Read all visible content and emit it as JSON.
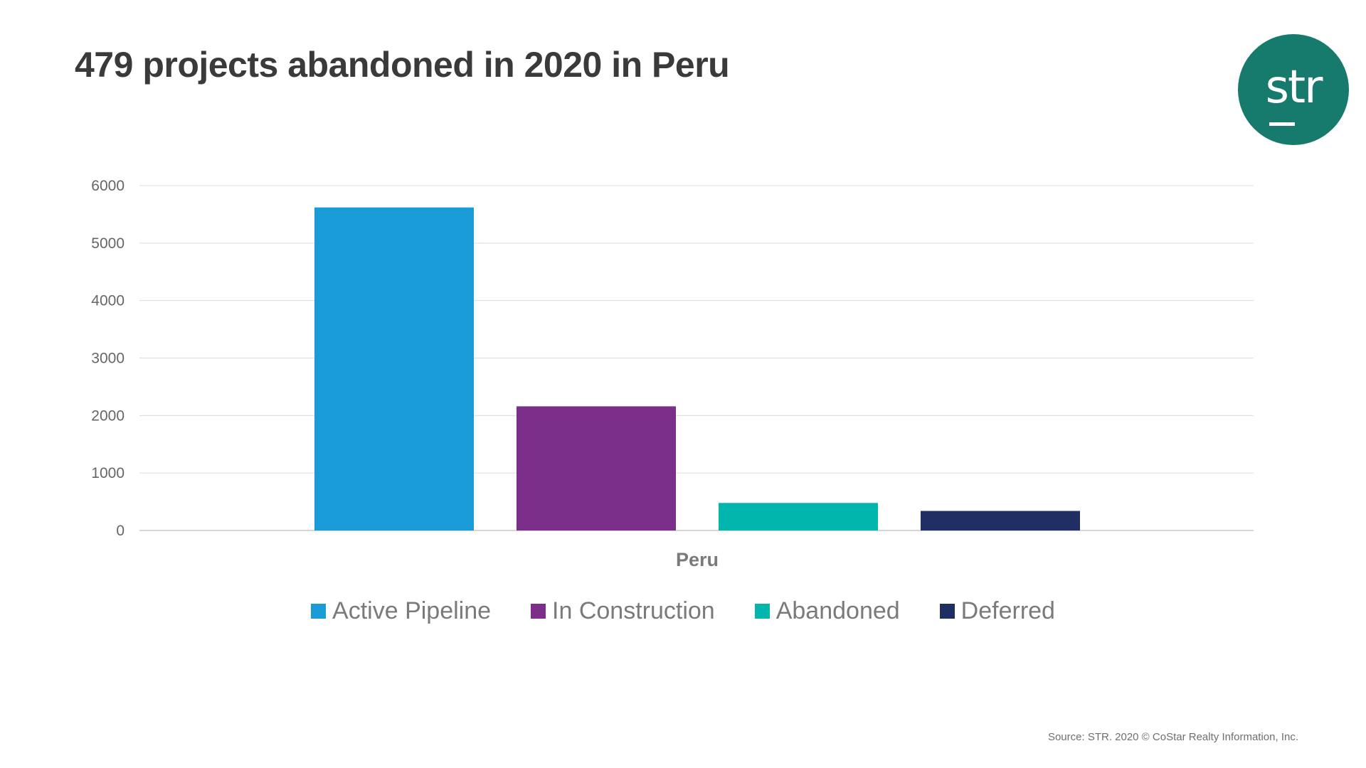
{
  "chart_data": {
    "type": "bar",
    "title": "479 projects abandoned in 2020 in Peru",
    "categories": [
      "Peru"
    ],
    "series": [
      {
        "name": "Active Pipeline",
        "values": [
          5620
        ],
        "color": "#189bd7"
      },
      {
        "name": "In Construction",
        "values": [
          2160
        ],
        "color": "#7c2f8a"
      },
      {
        "name": "Abandoned",
        "values": [
          479
        ],
        "color": "#00b6ad"
      },
      {
        "name": "Deferred",
        "values": [
          340
        ],
        "color": "#1f2f63"
      }
    ],
    "ylim": [
      0,
      6000
    ],
    "yticks": [
      0,
      1000,
      2000,
      3000,
      4000,
      5000,
      6000
    ],
    "xlabel": "",
    "ylabel": "",
    "grid": true,
    "legend_position": "bottom"
  },
  "logo": {
    "text": "str",
    "color": "#167a6c"
  },
  "footer": {
    "source": "Source: STR. 2020 © CoStar Realty Information, Inc."
  }
}
